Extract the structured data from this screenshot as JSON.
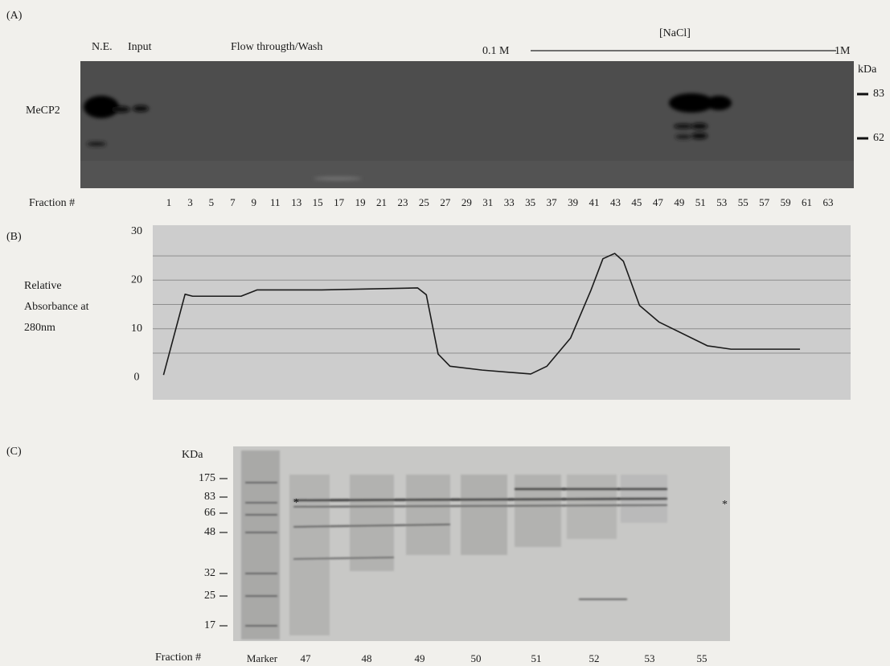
{
  "panel_a": {
    "label": "(A)",
    "lane_labels": [
      "N.E.",
      "Input"
    ],
    "flow_label": "Flow througth/Wash",
    "gradient_start": "0.1 M",
    "gradient_label": "[NaCl]",
    "gradient_end": "1M",
    "kda_label": "kDa",
    "kda_markers": [
      "83",
      "62"
    ],
    "protein_label": "MeCP2",
    "fraction_label": "Fraction #",
    "fractions": [
      1,
      3,
      5,
      7,
      9,
      11,
      13,
      15,
      17,
      19,
      21,
      23,
      25,
      27,
      29,
      31,
      33,
      35,
      37,
      39,
      41,
      43,
      45,
      47,
      49,
      51,
      53,
      55,
      57,
      59,
      61,
      63
    ]
  },
  "chart_data": {
    "type": "line",
    "panel_label": "(B)",
    "y_label_lines": [
      "Relative",
      "Absorbance at",
      "280nm"
    ],
    "x": [
      0.5,
      2.5,
      3.2,
      7.7,
      9.2,
      15.2,
      24.1,
      24.9,
      26,
      27.1,
      30.1,
      34.6,
      36.1,
      38.3,
      40.2,
      41.3,
      42.4,
      43.2,
      44.7,
      46.5,
      51,
      53.2,
      59.6
    ],
    "values": [
      0.5,
      17.1,
      16.7,
      16.7,
      18,
      18,
      18.4,
      17,
      4.8,
      2.3,
      1.5,
      0.7,
      2.3,
      8.1,
      18,
      24.4,
      25.5,
      23.9,
      14.8,
      11.4,
      6.5,
      5.8,
      5.8
    ],
    "color": "#1a1a1a",
    "xlim": [
      -0.5,
      64.3
    ],
    "ylim": [
      -4.6,
      31.3
    ],
    "yticks": [
      0,
      10,
      20,
      30
    ],
    "grid_lines": [
      5,
      10,
      15,
      20,
      25
    ],
    "grid": true
  },
  "panel_c": {
    "label": "(C)",
    "kda_label": "KDa",
    "markers": [
      "175",
      "83",
      "66",
      "48",
      "32",
      "25",
      "17"
    ],
    "band_marks": [
      "*",
      "*"
    ],
    "fraction_label": "Fraction #",
    "lanes": [
      "Marker",
      "47",
      "48",
      "49",
      "50",
      "51",
      "52",
      "53",
      "55"
    ]
  }
}
